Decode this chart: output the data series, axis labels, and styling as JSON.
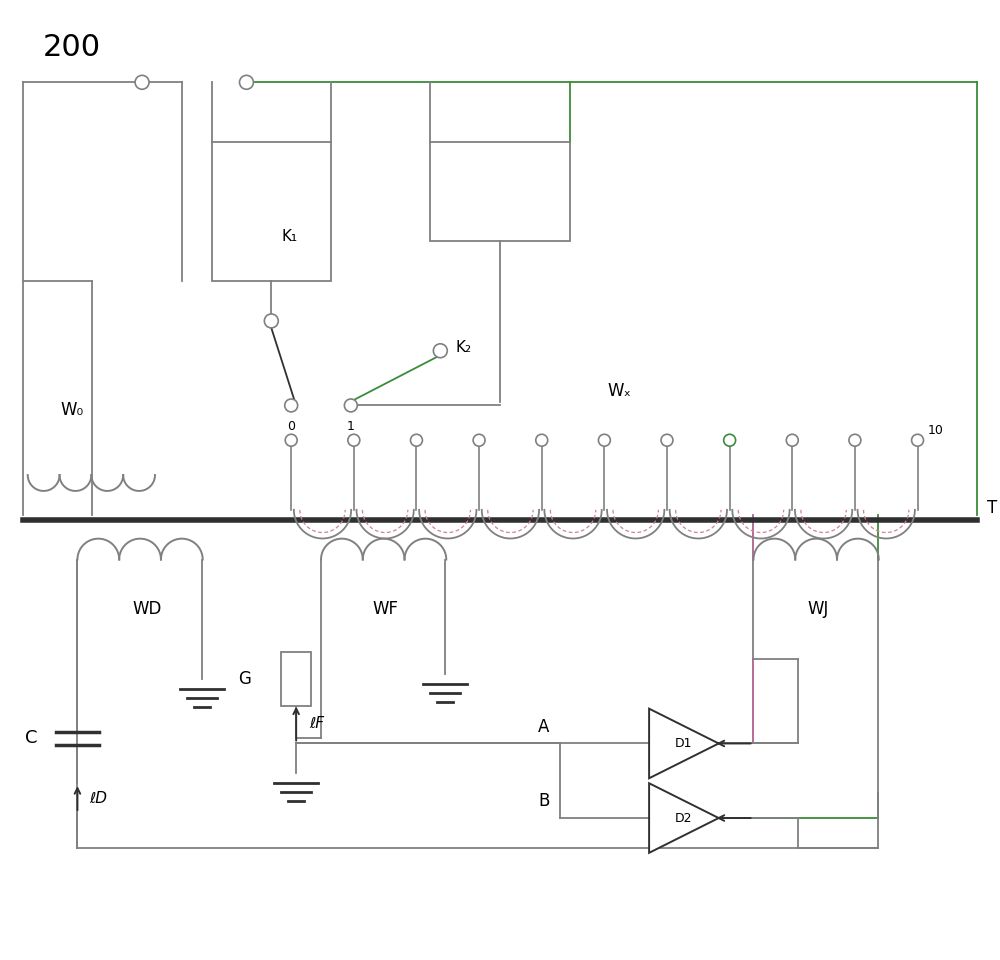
{
  "title_label": "200",
  "label_T": "T",
  "label_W0": "W₀",
  "label_WX": "Wₓ",
  "label_WD": "WD",
  "label_WF": "WF",
  "label_WJ": "WJ",
  "label_K1": "K₁",
  "label_K2": "K₂",
  "label_C": "C",
  "label_G": "G",
  "label_ID": "ℓD",
  "label_IF": "ℓF",
  "label_A": "A",
  "label_B": "B",
  "label_D1": "D1",
  "label_D2": "D2",
  "label_0": "0",
  "label_1": "1",
  "label_10": "10",
  "bg_color": "#ffffff",
  "line_color": "#808080",
  "dark_line_color": "#303030",
  "green_color": "#3a8c3a",
  "purple_color": "#b06090",
  "pink_dashed_color": "#d080a0"
}
